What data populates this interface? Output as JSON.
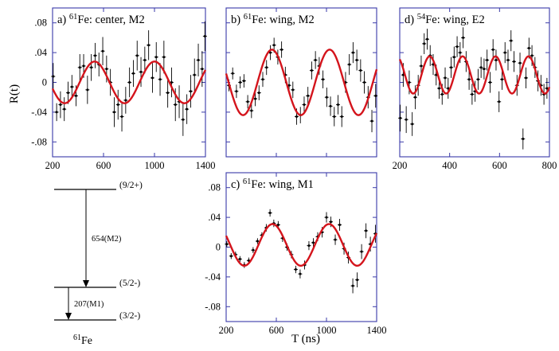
{
  "figure": {
    "y_axis_label": "R(t)",
    "x_axis_label": "T (ns)"
  },
  "colors": {
    "frame": "#3a3aa8",
    "fit": "#d4141c",
    "data": "#000000"
  },
  "level_scheme": {
    "nucleus": "61Fe",
    "levels": [
      {
        "label": "(9/2+)"
      },
      {
        "label": "(5/2-)"
      },
      {
        "label": "(3/2-)"
      }
    ],
    "transitions": [
      {
        "label": "654(M2)"
      },
      {
        "label": "207(M1)"
      }
    ]
  },
  "chart_data": [
    {
      "id": "a",
      "type": "scatter",
      "title": "a) 61Fe: center, M2",
      "xlim": [
        200,
        1400
      ],
      "ylim": [
        -0.1,
        0.1
      ],
      "xticks": [
        200,
        600,
        1000,
        1400
      ],
      "yticks": [
        -0.08,
        -0.04,
        0,
        0.04,
        0.08
      ],
      "show_xticklabels": true,
      "show_yticklabels": true,
      "fit": {
        "amplitude": 0.028,
        "period": 470,
        "peak_t": 530,
        "offset": 0.0
      },
      "points": [
        [
          205,
          0.008,
          0.018
        ],
        [
          232,
          -0.04,
          0.012
        ],
        [
          262,
          -0.03,
          0.018
        ],
        [
          292,
          -0.036,
          0.016
        ],
        [
          322,
          -0.014,
          0.015
        ],
        [
          352,
          -0.006,
          0.016
        ],
        [
          384,
          -0.018,
          0.014
        ],
        [
          414,
          0.02,
          0.018
        ],
        [
          444,
          0.022,
          0.016
        ],
        [
          474,
          -0.01,
          0.019
        ],
        [
          504,
          0.02,
          0.018
        ],
        [
          534,
          0.036,
          0.017
        ],
        [
          564,
          0.024,
          0.016
        ],
        [
          594,
          0.042,
          0.019
        ],
        [
          624,
          0.018,
          0.018
        ],
        [
          654,
          0.0,
          0.018
        ],
        [
          684,
          -0.04,
          0.02
        ],
        [
          714,
          -0.03,
          0.02
        ],
        [
          744,
          -0.046,
          0.02
        ],
        [
          774,
          -0.024,
          0.018
        ],
        [
          804,
          0.0,
          0.02
        ],
        [
          834,
          0.012,
          0.018
        ],
        [
          864,
          0.036,
          0.02
        ],
        [
          894,
          0.014,
          0.02
        ],
        [
          924,
          0.03,
          0.018
        ],
        [
          954,
          0.05,
          0.02
        ],
        [
          984,
          0.006,
          0.02
        ],
        [
          1014,
          0.034,
          0.02
        ],
        [
          1044,
          0.004,
          0.022
        ],
        [
          1074,
          0.034,
          0.022
        ],
        [
          1104,
          -0.014,
          0.02
        ],
        [
          1134,
          0.0,
          0.02
        ],
        [
          1164,
          -0.03,
          0.022
        ],
        [
          1194,
          -0.026,
          0.022
        ],
        [
          1224,
          -0.05,
          0.022
        ],
        [
          1254,
          -0.036,
          0.02
        ],
        [
          1284,
          -0.012,
          0.022
        ],
        [
          1314,
          0.01,
          0.022
        ],
        [
          1344,
          0.03,
          0.022
        ],
        [
          1374,
          0.018,
          0.024
        ],
        [
          1396,
          0.062,
          0.02
        ]
      ]
    },
    {
      "id": "b",
      "type": "scatter",
      "title": "b) 61Fe: wing, M2",
      "xlim": [
        200,
        1400
      ],
      "ylim": [
        -0.1,
        0.1
      ],
      "xticks": [
        200,
        600,
        1000,
        1400
      ],
      "yticks": [
        -0.08,
        -0.04,
        0,
        0.04,
        0.08
      ],
      "show_xticklabels": false,
      "show_yticklabels": false,
      "fit": {
        "amplitude": 0.044,
        "period": 460,
        "peak_t": 565,
        "offset": 0.0
      },
      "points": [
        [
          222,
          -0.004,
          0.008
        ],
        [
          252,
          0.012,
          0.008
        ],
        [
          282,
          -0.012,
          0.009
        ],
        [
          312,
          0.0,
          0.008
        ],
        [
          342,
          0.002,
          0.009
        ],
        [
          372,
          -0.026,
          0.009
        ],
        [
          402,
          -0.038,
          0.01
        ],
        [
          432,
          -0.022,
          0.01
        ],
        [
          462,
          -0.014,
          0.01
        ],
        [
          492,
          0.004,
          0.01
        ],
        [
          522,
          0.02,
          0.01
        ],
        [
          552,
          0.04,
          0.01
        ],
        [
          582,
          0.05,
          0.01
        ],
        [
          612,
          0.034,
          0.01
        ],
        [
          642,
          0.044,
          0.011
        ],
        [
          672,
          0.01,
          0.011
        ],
        [
          702,
          -0.004,
          0.011
        ],
        [
          732,
          -0.01,
          0.011
        ],
        [
          762,
          -0.046,
          0.011
        ],
        [
          792,
          -0.044,
          0.011
        ],
        [
          822,
          -0.03,
          0.011
        ],
        [
          852,
          -0.018,
          0.012
        ],
        [
          882,
          0.016,
          0.012
        ],
        [
          912,
          0.03,
          0.012
        ],
        [
          942,
          0.022,
          0.012
        ],
        [
          972,
          0.004,
          0.012
        ],
        [
          1002,
          -0.02,
          0.013
        ],
        [
          1032,
          -0.032,
          0.013
        ],
        [
          1062,
          -0.046,
          0.013
        ],
        [
          1092,
          -0.03,
          0.013
        ],
        [
          1122,
          -0.046,
          0.014
        ],
        [
          1152,
          0.0,
          0.014
        ],
        [
          1182,
          0.024,
          0.014
        ],
        [
          1212,
          0.04,
          0.014
        ],
        [
          1242,
          0.03,
          0.014
        ],
        [
          1272,
          0.016,
          0.015
        ],
        [
          1302,
          0.0,
          0.015
        ],
        [
          1332,
          -0.02,
          0.015
        ],
        [
          1362,
          -0.052,
          0.015
        ],
        [
          1392,
          -0.018,
          0.016
        ]
      ]
    },
    {
      "id": "c",
      "type": "scatter",
      "title": "c) 61Fe: wing, M1",
      "xlim": [
        200,
        1400
      ],
      "ylim": [
        -0.1,
        0.1
      ],
      "xticks": [
        200,
        600,
        1000,
        1400
      ],
      "yticks": [
        -0.08,
        -0.04,
        0,
        0.04,
        0.08
      ],
      "show_xticklabels": true,
      "show_yticklabels": true,
      "fit": {
        "amplitude": 0.028,
        "period": 450,
        "peak_t": 570,
        "offset": 0.003
      },
      "points": [
        [
          205,
          0.004,
          0.004
        ],
        [
          240,
          -0.012,
          0.004
        ],
        [
          275,
          -0.01,
          0.004
        ],
        [
          310,
          -0.016,
          0.004
        ],
        [
          345,
          -0.024,
          0.004
        ],
        [
          380,
          -0.018,
          0.004
        ],
        [
          415,
          -0.004,
          0.004
        ],
        [
          450,
          0.008,
          0.004
        ],
        [
          485,
          0.016,
          0.004
        ],
        [
          520,
          0.026,
          0.005
        ],
        [
          550,
          0.046,
          0.005
        ],
        [
          580,
          0.032,
          0.005
        ],
        [
          615,
          0.03,
          0.005
        ],
        [
          650,
          0.012,
          0.005
        ],
        [
          685,
          0.0,
          0.005
        ],
        [
          720,
          -0.01,
          0.005
        ],
        [
          755,
          -0.03,
          0.005
        ],
        [
          790,
          -0.036,
          0.006
        ],
        [
          825,
          -0.024,
          0.006
        ],
        [
          860,
          0.002,
          0.006
        ],
        [
          895,
          0.006,
          0.006
        ],
        [
          930,
          0.014,
          0.006
        ],
        [
          965,
          0.02,
          0.007
        ],
        [
          1000,
          0.04,
          0.007
        ],
        [
          1035,
          0.034,
          0.007
        ],
        [
          1070,
          0.01,
          0.007
        ],
        [
          1105,
          0.03,
          0.008
        ],
        [
          1140,
          -0.002,
          0.008
        ],
        [
          1175,
          -0.014,
          0.008
        ],
        [
          1210,
          -0.052,
          0.01
        ],
        [
          1245,
          -0.044,
          0.01
        ],
        [
          1280,
          -0.006,
          0.01
        ],
        [
          1315,
          0.022,
          0.01
        ],
        [
          1350,
          0.004,
          0.01
        ],
        [
          1390,
          0.018,
          0.012
        ]
      ]
    },
    {
      "id": "d",
      "type": "scatter",
      "title": "d) 54Fe: wing, E2",
      "xlim": [
        200,
        800
      ],
      "ylim": [
        -0.1,
        0.1
      ],
      "xticks": [
        200,
        400,
        600,
        800
      ],
      "yticks": [
        -0.08,
        -0.04,
        0,
        0.04,
        0.08
      ],
      "show_xticklabels": true,
      "show_yticklabels": false,
      "fit": {
        "amplitude": 0.025,
        "period": 132,
        "peak_t": 320,
        "offset": 0.01
      },
      "points": [
        [
          202,
          -0.048,
          0.018
        ],
        [
          214,
          0.01,
          0.016
        ],
        [
          226,
          -0.05,
          0.018
        ],
        [
          238,
          0.0,
          0.016
        ],
        [
          250,
          -0.056,
          0.016
        ],
        [
          262,
          -0.02,
          0.016
        ],
        [
          274,
          -0.004,
          0.014
        ],
        [
          286,
          0.022,
          0.014
        ],
        [
          298,
          0.052,
          0.014
        ],
        [
          310,
          0.058,
          0.014
        ],
        [
          322,
          0.036,
          0.014
        ],
        [
          334,
          0.024,
          0.014
        ],
        [
          346,
          0.01,
          0.014
        ],
        [
          358,
          -0.008,
          0.014
        ],
        [
          370,
          -0.016,
          0.014
        ],
        [
          382,
          0.006,
          0.014
        ],
        [
          394,
          -0.008,
          0.014
        ],
        [
          406,
          0.02,
          0.014
        ],
        [
          418,
          0.034,
          0.014
        ],
        [
          430,
          0.048,
          0.014
        ],
        [
          442,
          0.04,
          0.014
        ],
        [
          454,
          0.06,
          0.014
        ],
        [
          466,
          0.028,
          0.014
        ],
        [
          478,
          0.004,
          0.014
        ],
        [
          490,
          -0.016,
          0.014
        ],
        [
          502,
          -0.012,
          0.014
        ],
        [
          514,
          0.004,
          0.014
        ],
        [
          526,
          0.02,
          0.014
        ],
        [
          538,
          0.018,
          0.014
        ],
        [
          550,
          0.03,
          0.014
        ],
        [
          562,
          0.0,
          0.014
        ],
        [
          574,
          0.044,
          0.014
        ],
        [
          586,
          0.03,
          0.014
        ],
        [
          598,
          -0.026,
          0.014
        ],
        [
          610,
          0.004,
          0.014
        ],
        [
          622,
          0.04,
          0.014
        ],
        [
          634,
          0.03,
          0.014
        ],
        [
          646,
          0.056,
          0.014
        ],
        [
          658,
          0.028,
          0.014
        ],
        [
          670,
          -0.004,
          0.014
        ],
        [
          682,
          0.026,
          0.014
        ],
        [
          694,
          -0.076,
          0.014
        ],
        [
          706,
          0.006,
          0.014
        ],
        [
          718,
          0.046,
          0.014
        ],
        [
          730,
          0.036,
          0.014
        ],
        [
          742,
          0.02,
          0.014
        ],
        [
          754,
          0.002,
          0.014
        ],
        [
          766,
          -0.004,
          0.014
        ],
        [
          778,
          -0.016,
          0.014
        ],
        [
          790,
          -0.008,
          0.014
        ]
      ]
    }
  ]
}
